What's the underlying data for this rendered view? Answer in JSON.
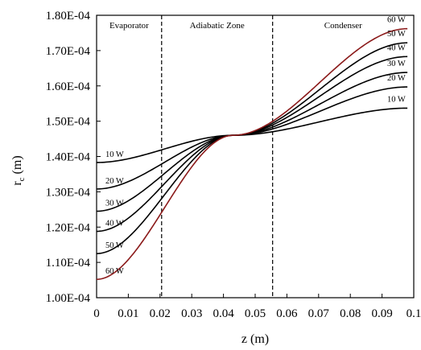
{
  "chart_data": {
    "type": "line",
    "xlabel": "z (m)",
    "ylabel_main": "r",
    "ylabel_sub": "c",
    "ylabel_unit": " (m)",
    "xlim": [
      0,
      0.1
    ],
    "ylim": [
      0.0001,
      0.00018
    ],
    "xticks": [
      "0",
      "0.01",
      "0.02",
      "0.03",
      "0.04",
      "0.05",
      "0.06",
      "0.07",
      "0.08",
      "0.09",
      "0.1"
    ],
    "yticks": [
      "1.00E-04",
      "1.10E-04",
      "1.20E-04",
      "1.30E-04",
      "1.40E-04",
      "1.50E-04",
      "1.60E-04",
      "1.70E-04",
      "1.80E-04"
    ],
    "zones": [
      {
        "label": "Evaporator",
        "x_from": 0,
        "x_to": 0.0205
      },
      {
        "label": "Adiabatic Zone",
        "x_from": 0.0205,
        "x_to": 0.0555
      },
      {
        "label": "Condenser",
        "x_from": 0.0555,
        "x_to": 0.1
      }
    ],
    "boundaries": [
      0.0205,
      0.0555
    ],
    "series": [
      {
        "name": "10 W",
        "color": "#000000",
        "z_start": 0.0,
        "z_end": 0.098,
        "r_start": 0.0001383,
        "r_end": 0.0001537
      },
      {
        "name": "20 W",
        "color": "#000000",
        "z_start": 0.0,
        "z_end": 0.098,
        "r_start": 0.0001308,
        "r_end": 0.0001597
      },
      {
        "name": "30 W",
        "color": "#000000",
        "z_start": 0.0,
        "z_end": 0.098,
        "r_start": 0.0001245,
        "r_end": 0.0001638
      },
      {
        "name": "40 W",
        "color": "#000000",
        "z_start": 0.0,
        "z_end": 0.098,
        "r_start": 0.0001188,
        "r_end": 0.0001683
      },
      {
        "name": "50 W",
        "color": "#000000",
        "z_start": 0.0,
        "z_end": 0.098,
        "r_start": 0.0001125,
        "r_end": 0.0001722
      },
      {
        "name": "60 W",
        "color": "#8b1a1a",
        "z_start": 0.0,
        "z_end": 0.098,
        "r_start": 0.0001052,
        "r_end": 0.0001762
      }
    ],
    "crossover": {
      "z": 0.043,
      "r": 0.000146
    },
    "grid": false
  }
}
